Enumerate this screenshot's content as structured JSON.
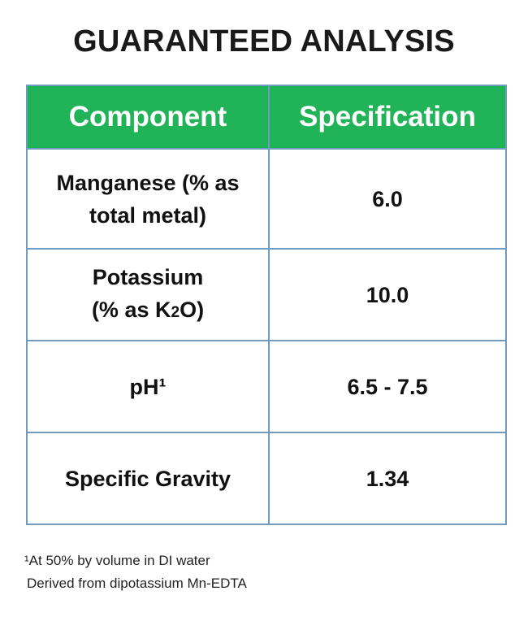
{
  "title": "GUARANTEED ANALYSIS",
  "table": {
    "headers": {
      "component": "Component",
      "specification": "Specification"
    },
    "rows": [
      {
        "component_line1": "Manganese (% as",
        "component_line2": "total metal)",
        "specification": "6.0"
      },
      {
        "component_line1": "Potassium",
        "component_line2_pre": "(% as K",
        "component_line2_sub": "2",
        "component_line2_post": "O)",
        "specification": "10.0"
      },
      {
        "component": "pH¹",
        "specification": "6.5 - 7.5"
      },
      {
        "component": "Specific Gravity",
        "specification": "1.34"
      }
    ]
  },
  "footnotes": {
    "note1": "¹At 50% by volume in DI water",
    "note2": "Derived from dipotassium Mn-EDTA"
  },
  "colors": {
    "header_background": "#20b357",
    "border": "#6f9bbf"
  }
}
